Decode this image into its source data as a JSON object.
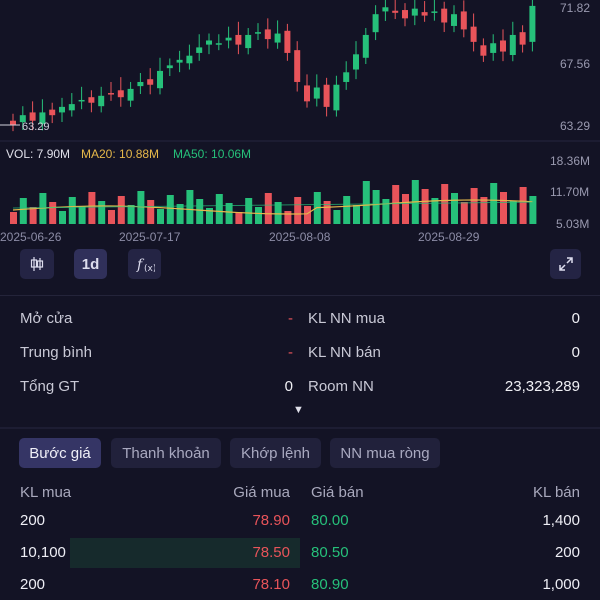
{
  "chart": {
    "price_labels": [
      "71.82",
      "67.56",
      "63.29"
    ],
    "low_marker": "63.29",
    "volume_legend": {
      "vol": "VOL: 7.90M",
      "ma20": "MA20: 10.88M",
      "ma50": "MA50: 10.06M"
    },
    "volume_labels": [
      "18.36M",
      "11.70M",
      "5.03M"
    ],
    "dates": [
      "2025-06-26",
      "2025-07-17",
      "2025-08-08",
      "2025-08-29"
    ],
    "colors": {
      "up": "#26c07a",
      "down": "#e8545a",
      "ma20": "#e6b84a",
      "ma50": "#26c07a",
      "background": "#131325"
    }
  },
  "toolbar": {
    "candle_icon": "candlestick-icon",
    "interval_label": "1d",
    "indicator_icon": "function-icon",
    "expand_icon": "expand-icon"
  },
  "stats": {
    "rows": [
      {
        "label": "Mở cửa",
        "value": "-",
        "label2": "KL NN mua",
        "value2": "0"
      },
      {
        "label": "Trung bình",
        "value": "-",
        "label2": "KL NN bán",
        "value2": "0"
      },
      {
        "label": "Tổng GT",
        "value": "0",
        "label2": "Room NN",
        "value2": "23,323,289"
      }
    ],
    "more_icon": "▼"
  },
  "tabs": [
    "Bước giá",
    "Thanh khoản",
    "Khớp lệnh",
    "NN mua ròng"
  ],
  "orderbook": {
    "headers": {
      "kl_mua": "KL mua",
      "gia_mua": "Giá mua",
      "gia_ban": "Giá bán",
      "kl_ban": "KL bán"
    },
    "rows": [
      {
        "kl_mua": "200",
        "gia_mua": "78.90",
        "gia_ban": "80.00",
        "kl_ban": "1,400"
      },
      {
        "kl_mua": "10,100",
        "gia_mua": "78.50",
        "gia_ban": "80.50",
        "kl_ban": "200"
      },
      {
        "kl_mua": "200",
        "gia_mua": "78.10",
        "gia_ban": "80.90",
        "kl_ban": "1,000"
      }
    ]
  }
}
